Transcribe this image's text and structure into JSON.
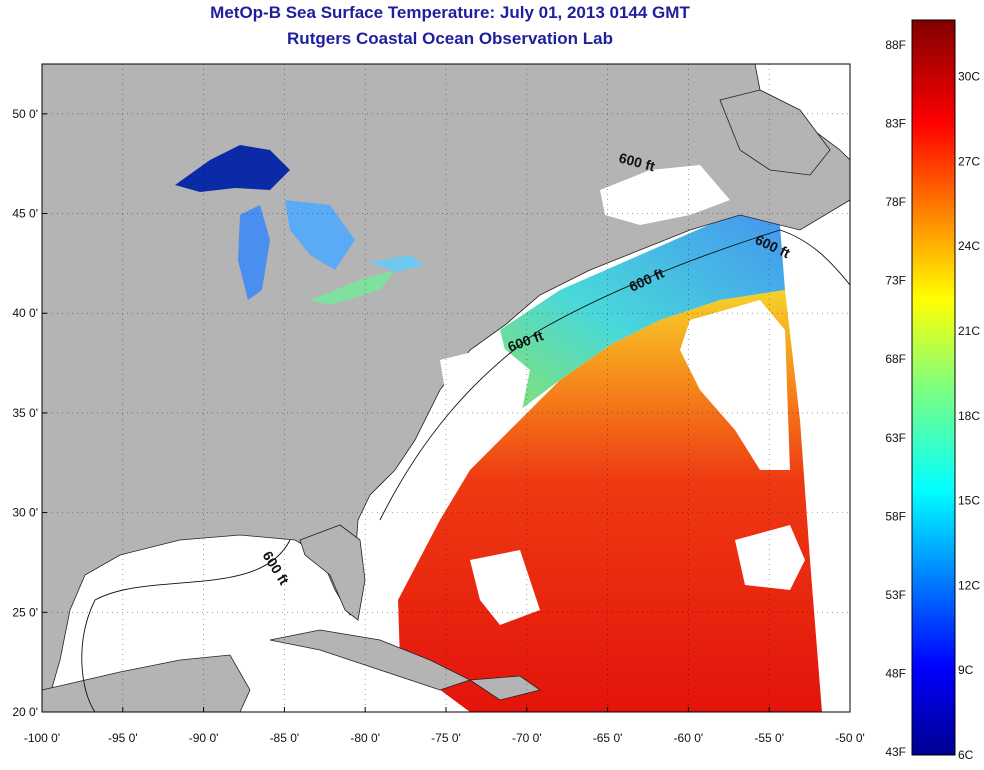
{
  "header": {
    "title": "MetOp-B Sea Surface Temperature:  July 01, 2013 0144 GMT",
    "subtitle": "Rutgers Coastal Ocean Observation Lab"
  },
  "map": {
    "lon_range": [
      -100,
      -50
    ],
    "lat_range": [
      20,
      52.5
    ],
    "lon_ticks": [
      {
        "value": -100,
        "label": "-100 0'"
      },
      {
        "value": -95,
        "label": "-95 0'"
      },
      {
        "value": -90,
        "label": "-90 0'"
      },
      {
        "value": -85,
        "label": "-85 0'"
      },
      {
        "value": -80,
        "label": "-80 0'"
      },
      {
        "value": -75,
        "label": "-75 0'"
      },
      {
        "value": -70,
        "label": "-70 0'"
      },
      {
        "value": -65,
        "label": "-65 0'"
      },
      {
        "value": -60,
        "label": "-60 0'"
      },
      {
        "value": -55,
        "label": "-55 0'"
      },
      {
        "value": -50,
        "label": "-50 0'"
      }
    ],
    "lat_ticks": [
      {
        "value": 50,
        "label": "50 0'"
      },
      {
        "value": 45,
        "label": "45 0'"
      },
      {
        "value": 40,
        "label": "40 0'"
      },
      {
        "value": 35,
        "label": "35 0'"
      },
      {
        "value": 30,
        "label": "30 0'"
      },
      {
        "value": 25,
        "label": "25 0'"
      },
      {
        "value": 20,
        "label": "20 0'"
      }
    ],
    "contour_labels": [
      "600 ft",
      "600 ft",
      "600 ft",
      "600 ft",
      "600 ft"
    ],
    "colors": {
      "land": "#b4b4b4",
      "cloud": "#ffffff",
      "warm": "#e8260e",
      "cool": "#3aa0ff"
    }
  },
  "colorbar": {
    "range_c": [
      6,
      32
    ],
    "labels_f": [
      {
        "value": 88,
        "label": "88F"
      },
      {
        "value": 83,
        "label": "83F"
      },
      {
        "value": 78,
        "label": "78F"
      },
      {
        "value": 73,
        "label": "73F"
      },
      {
        "value": 68,
        "label": "68F"
      },
      {
        "value": 63,
        "label": "63F"
      },
      {
        "value": 58,
        "label": "58F"
      },
      {
        "value": 53,
        "label": "53F"
      },
      {
        "value": 48,
        "label": "48F"
      },
      {
        "value": 43,
        "label": "43F"
      }
    ],
    "labels_c": [
      {
        "value": 30,
        "label": "30C"
      },
      {
        "value": 27,
        "label": "27C"
      },
      {
        "value": 24,
        "label": "24C"
      },
      {
        "value": 21,
        "label": "21C"
      },
      {
        "value": 18,
        "label": "18C"
      },
      {
        "value": 15,
        "label": "15C"
      },
      {
        "value": 12,
        "label": "12C"
      },
      {
        "value": 9,
        "label": "9C"
      },
      {
        "value": 6,
        "label": "6C"
      }
    ]
  }
}
